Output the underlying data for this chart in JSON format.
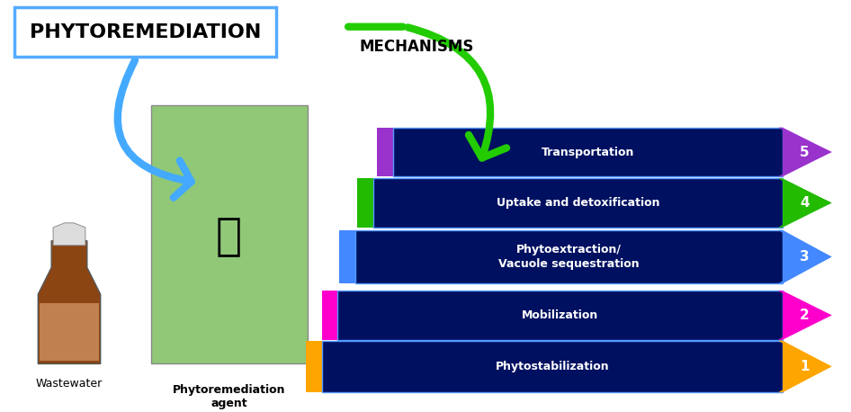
{
  "title": "PHYTOREMEDIATION",
  "mechanisms_label": "MECHANISMS",
  "wastewater_label": "Wastewater",
  "agent_label": "Phytoremediation\nagent",
  "steps": [
    {
      "label": "Phytostabilization",
      "number": "1",
      "color": "#FFA500"
    },
    {
      "label": "Mobilization",
      "number": "2",
      "color": "#FF00CC"
    },
    {
      "label": "Phytoextraction/\nVacuole sequestration",
      "number": "3",
      "color": "#4488FF"
    },
    {
      "label": "Uptake and detoxification",
      "number": "4",
      "color": "#22BB00"
    },
    {
      "label": "Transportation",
      "number": "5",
      "color": "#9933CC"
    }
  ],
  "bar_color": "#001060",
  "background_color": "#FFFFFF",
  "blue_arrow_color": "#44AAFF",
  "green_arrow_color": "#22CC00",
  "title_border_color": "#55AAFF"
}
